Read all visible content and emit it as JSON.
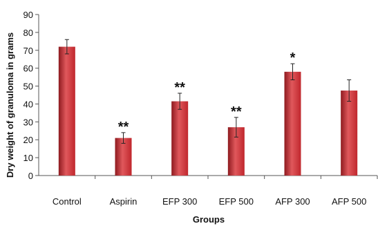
{
  "chart_data": {
    "type": "bar",
    "title": "",
    "xlabel": "Groups",
    "ylabel": "Dry weight of granuloma in grams",
    "categories": [
      "Control",
      "Aspirin",
      "EFP 300",
      "EFP 500",
      "AFP 300",
      "AFP 500"
    ],
    "values": [
      72,
      21,
      41.5,
      27,
      58,
      47.5
    ],
    "errors": [
      4,
      3,
      4.5,
      5.5,
      4.5,
      6
    ],
    "annotations": [
      "",
      "**",
      "**",
      "**",
      "*",
      ""
    ],
    "ylim": [
      0,
      90
    ],
    "yticks": [
      0,
      10,
      20,
      30,
      40,
      50,
      60,
      70,
      80,
      90
    ],
    "grid": false,
    "legend": "none",
    "bar_color": "#c0272d",
    "bar_color_light": "#e0585c",
    "bar_color_dark": "#8e1a1f"
  }
}
